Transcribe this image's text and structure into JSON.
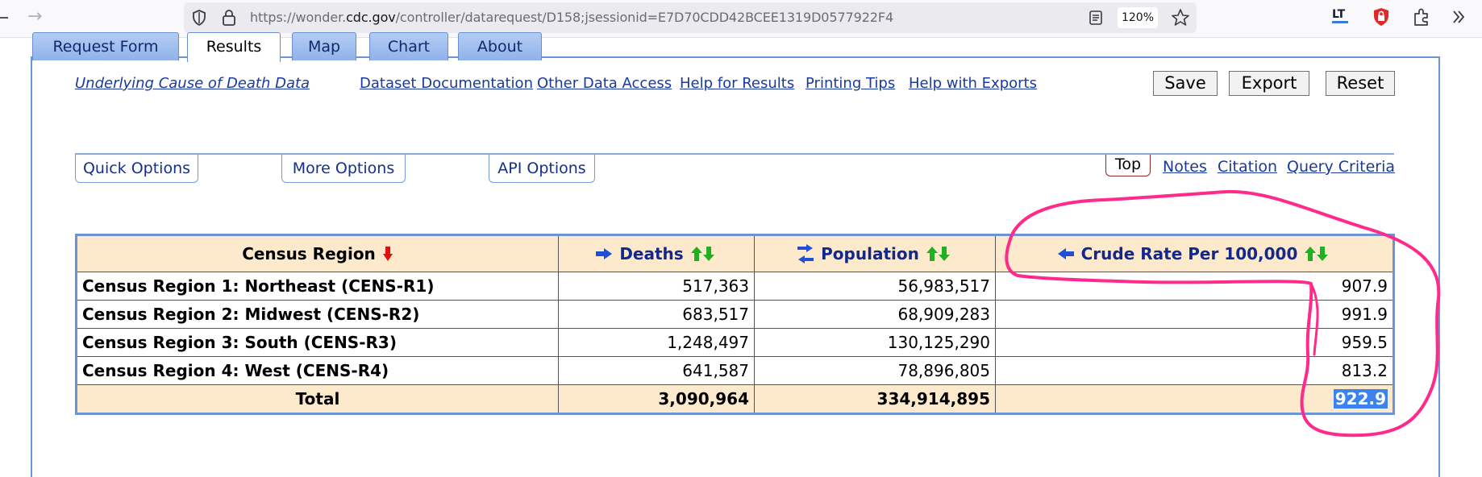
{
  "browser": {
    "url_prefix": "https://wonder.",
    "url_host": "cdc.gov",
    "url_suffix": "/controller/datarequest/D158;jsessionid=E7D70CDD42BCEE1319D0577922F4",
    "zoom": "120%",
    "ext_lt": "LT"
  },
  "tabs": [
    "Request Form",
    "Results",
    "Map",
    "Chart",
    "About"
  ],
  "links": {
    "underlying": "Underlying Cause of Death Data",
    "dataset_doc": "Dataset Documentation",
    "other_access": "Other Data Access",
    "help_results": "Help for Results",
    "printing": "Printing Tips",
    "help_exports": "Help with Exports"
  },
  "buttons": {
    "save": "Save",
    "export": "Export",
    "reset": "Reset"
  },
  "options": {
    "quick": "Quick Options",
    "more": "More Options",
    "api": "API Options"
  },
  "right_links": {
    "top": "Top",
    "notes": "Notes",
    "citation": "Citation",
    "query": "Query Criteria"
  },
  "table": {
    "headers": {
      "region": "Census Region",
      "deaths": "Deaths",
      "population": "Population",
      "rate": "Crude Rate Per 100,000"
    },
    "rows": [
      {
        "region": "Census Region 1: Northeast (CENS-R1)",
        "deaths": "517,363",
        "population": "56,983,517",
        "rate": "907.9"
      },
      {
        "region": "Census Region 2: Midwest (CENS-R2)",
        "deaths": "683,517",
        "population": "68,909,283",
        "rate": "991.9"
      },
      {
        "region": "Census Region 3: South (CENS-R3)",
        "deaths": "1,248,497",
        "population": "130,125,290",
        "rate": "959.5"
      },
      {
        "region": "Census Region 4: West (CENS-R4)",
        "deaths": "641,587",
        "population": "78,896,805",
        "rate": "813.2"
      }
    ],
    "total": {
      "label": "Total",
      "deaths": "3,090,964",
      "population": "334,914,895",
      "rate": "922.9"
    }
  },
  "colors": {
    "header_bg": "#fde9cc",
    "link_blue": "#1a3a9c",
    "annotation": "#ff2a8a",
    "selection": "#3c82f0"
  }
}
